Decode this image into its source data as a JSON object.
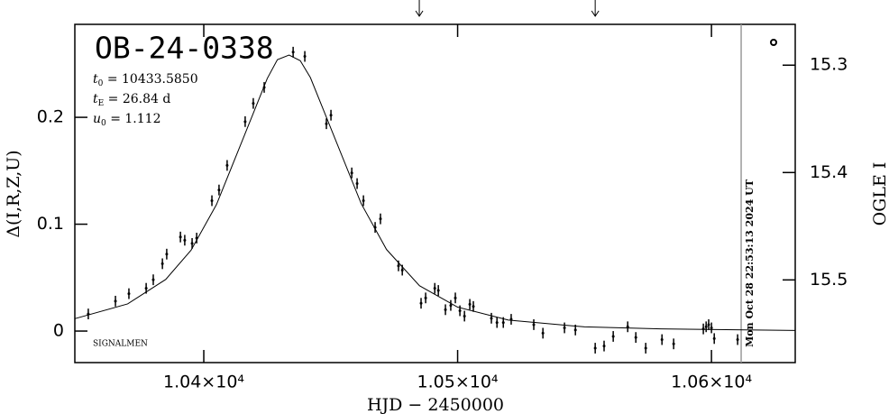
{
  "chart_data": {
    "type": "scatter",
    "title": "OB-24-0338",
    "parameters": [
      {
        "symbol": "t",
        "sub": "0",
        "text": " = 10433.5850"
      },
      {
        "symbol": "t",
        "sub": "E",
        "text": " = 26.84 d"
      },
      {
        "symbol": "u",
        "sub": "0",
        "text": " = 1.112"
      }
    ],
    "credit": "SIGNALMEN",
    "xlabel": "HJD − 2450000",
    "ylabel": "Δ(I,R,Z,U)",
    "y2label": "OGLE I",
    "xlim": [
      10349.2,
      10633.0
    ],
    "ylim": [
      -0.0295,
      0.287
    ],
    "y2lim": [
      15.577,
      15.262
    ],
    "xticks": [
      {
        "value": 10400,
        "label": "1.04×10⁴"
      },
      {
        "value": 10500,
        "label": "1.05×10⁴"
      },
      {
        "value": 10600,
        "label": "1.06×10⁴"
      }
    ],
    "yticks": [
      0,
      0.1,
      0.2
    ],
    "y2ticks": [
      15.3,
      15.4,
      15.5
    ],
    "color": "#000000",
    "series": [
      {
        "x": [
          10354.5,
          10365.2,
          10370.5,
          10377.3,
          10380.1,
          10383.7,
          10385.4,
          10390.8,
          10392.5,
          10395.4,
          10397.2,
          10403.2,
          10406.0,
          10409.2,
          10416.3,
          10419.5,
          10423.8,
          10435.2,
          10439.8,
          10448.3,
          10450.1,
          10458.3,
          10460.4,
          10462.9,
          10467.5,
          10469.6,
          10476.7,
          10478.2,
          10485.6,
          10487.4,
          10491.0,
          10492.4,
          10495.2,
          10497.3,
          10499.1,
          10500.9,
          10502.7,
          10504.8,
          10506.2,
          10513.3,
          10515.5,
          10518.0,
          10521.1,
          10530.0,
          10533.6,
          10542.1,
          10546.4,
          10554.2,
          10557.7,
          10561.3,
          10567.0,
          10570.2,
          10574.1,
          10580.5,
          10585.1,
          10596.8,
          10597.9,
          10598.9,
          10600.0,
          10601.1,
          10610.3
        ],
        "values": [
          0.016,
          0.028,
          0.035,
          0.04,
          0.048,
          0.063,
          0.072,
          0.088,
          0.085,
          0.082,
          0.087,
          0.122,
          0.132,
          0.155,
          0.196,
          0.213,
          0.228,
          0.261,
          0.257,
          0.194,
          0.202,
          0.148,
          0.138,
          0.122,
          0.097,
          0.105,
          0.061,
          0.057,
          0.026,
          0.031,
          0.04,
          0.038,
          0.02,
          0.024,
          0.031,
          0.019,
          0.014,
          0.025,
          0.023,
          0.012,
          0.008,
          0.008,
          0.011,
          0.006,
          -0.002,
          0.003,
          0.001,
          -0.016,
          -0.014,
          -0.005,
          0.004,
          -0.006,
          -0.016,
          -0.008,
          -0.012,
          0.002,
          0.004,
          0.006,
          0.003,
          -0.007,
          -0.008
        ],
        "errors": [
          0.005,
          0.005,
          0.005,
          0.005,
          0.005,
          0.005,
          0.005,
          0.005,
          0.005,
          0.005,
          0.005,
          0.005,
          0.005,
          0.005,
          0.005,
          0.005,
          0.005,
          0.005,
          0.005,
          0.005,
          0.005,
          0.005,
          0.005,
          0.005,
          0.005,
          0.005,
          0.005,
          0.005,
          0.005,
          0.005,
          0.005,
          0.005,
          0.005,
          0.005,
          0.005,
          0.005,
          0.005,
          0.005,
          0.005,
          0.005,
          0.005,
          0.005,
          0.005,
          0.005,
          0.005,
          0.005,
          0.005,
          0.005,
          0.005,
          0.005,
          0.005,
          0.005,
          0.005,
          0.005,
          0.005,
          0.005,
          0.005,
          0.005,
          0.005,
          0.005,
          0.005
        ]
      },
      {
        "type": "line",
        "x": [
          10349.2,
          10370,
          10385,
          10395,
          10405,
          10415,
          10425,
          10429,
          10433.6,
          10438,
          10442,
          10452,
          10462,
          10472,
          10485,
          10500,
          10520,
          10550,
          10580,
          10633.0
        ],
        "values": [
          0.0116,
          0.0254,
          0.0483,
          0.0757,
          0.1184,
          0.1772,
          0.2363,
          0.254,
          0.2583,
          0.253,
          0.2372,
          0.1783,
          0.1193,
          0.0763,
          0.0424,
          0.0224,
          0.0103,
          0.0039,
          0.002,
          0.0006
        ]
      }
    ],
    "arrows": [
      10484.9,
      10554.2
    ],
    "now_line": {
      "x": 10611.7,
      "label": "Mon Oct 28 22:53:13 2024 UT",
      "color": "#999999"
    }
  }
}
